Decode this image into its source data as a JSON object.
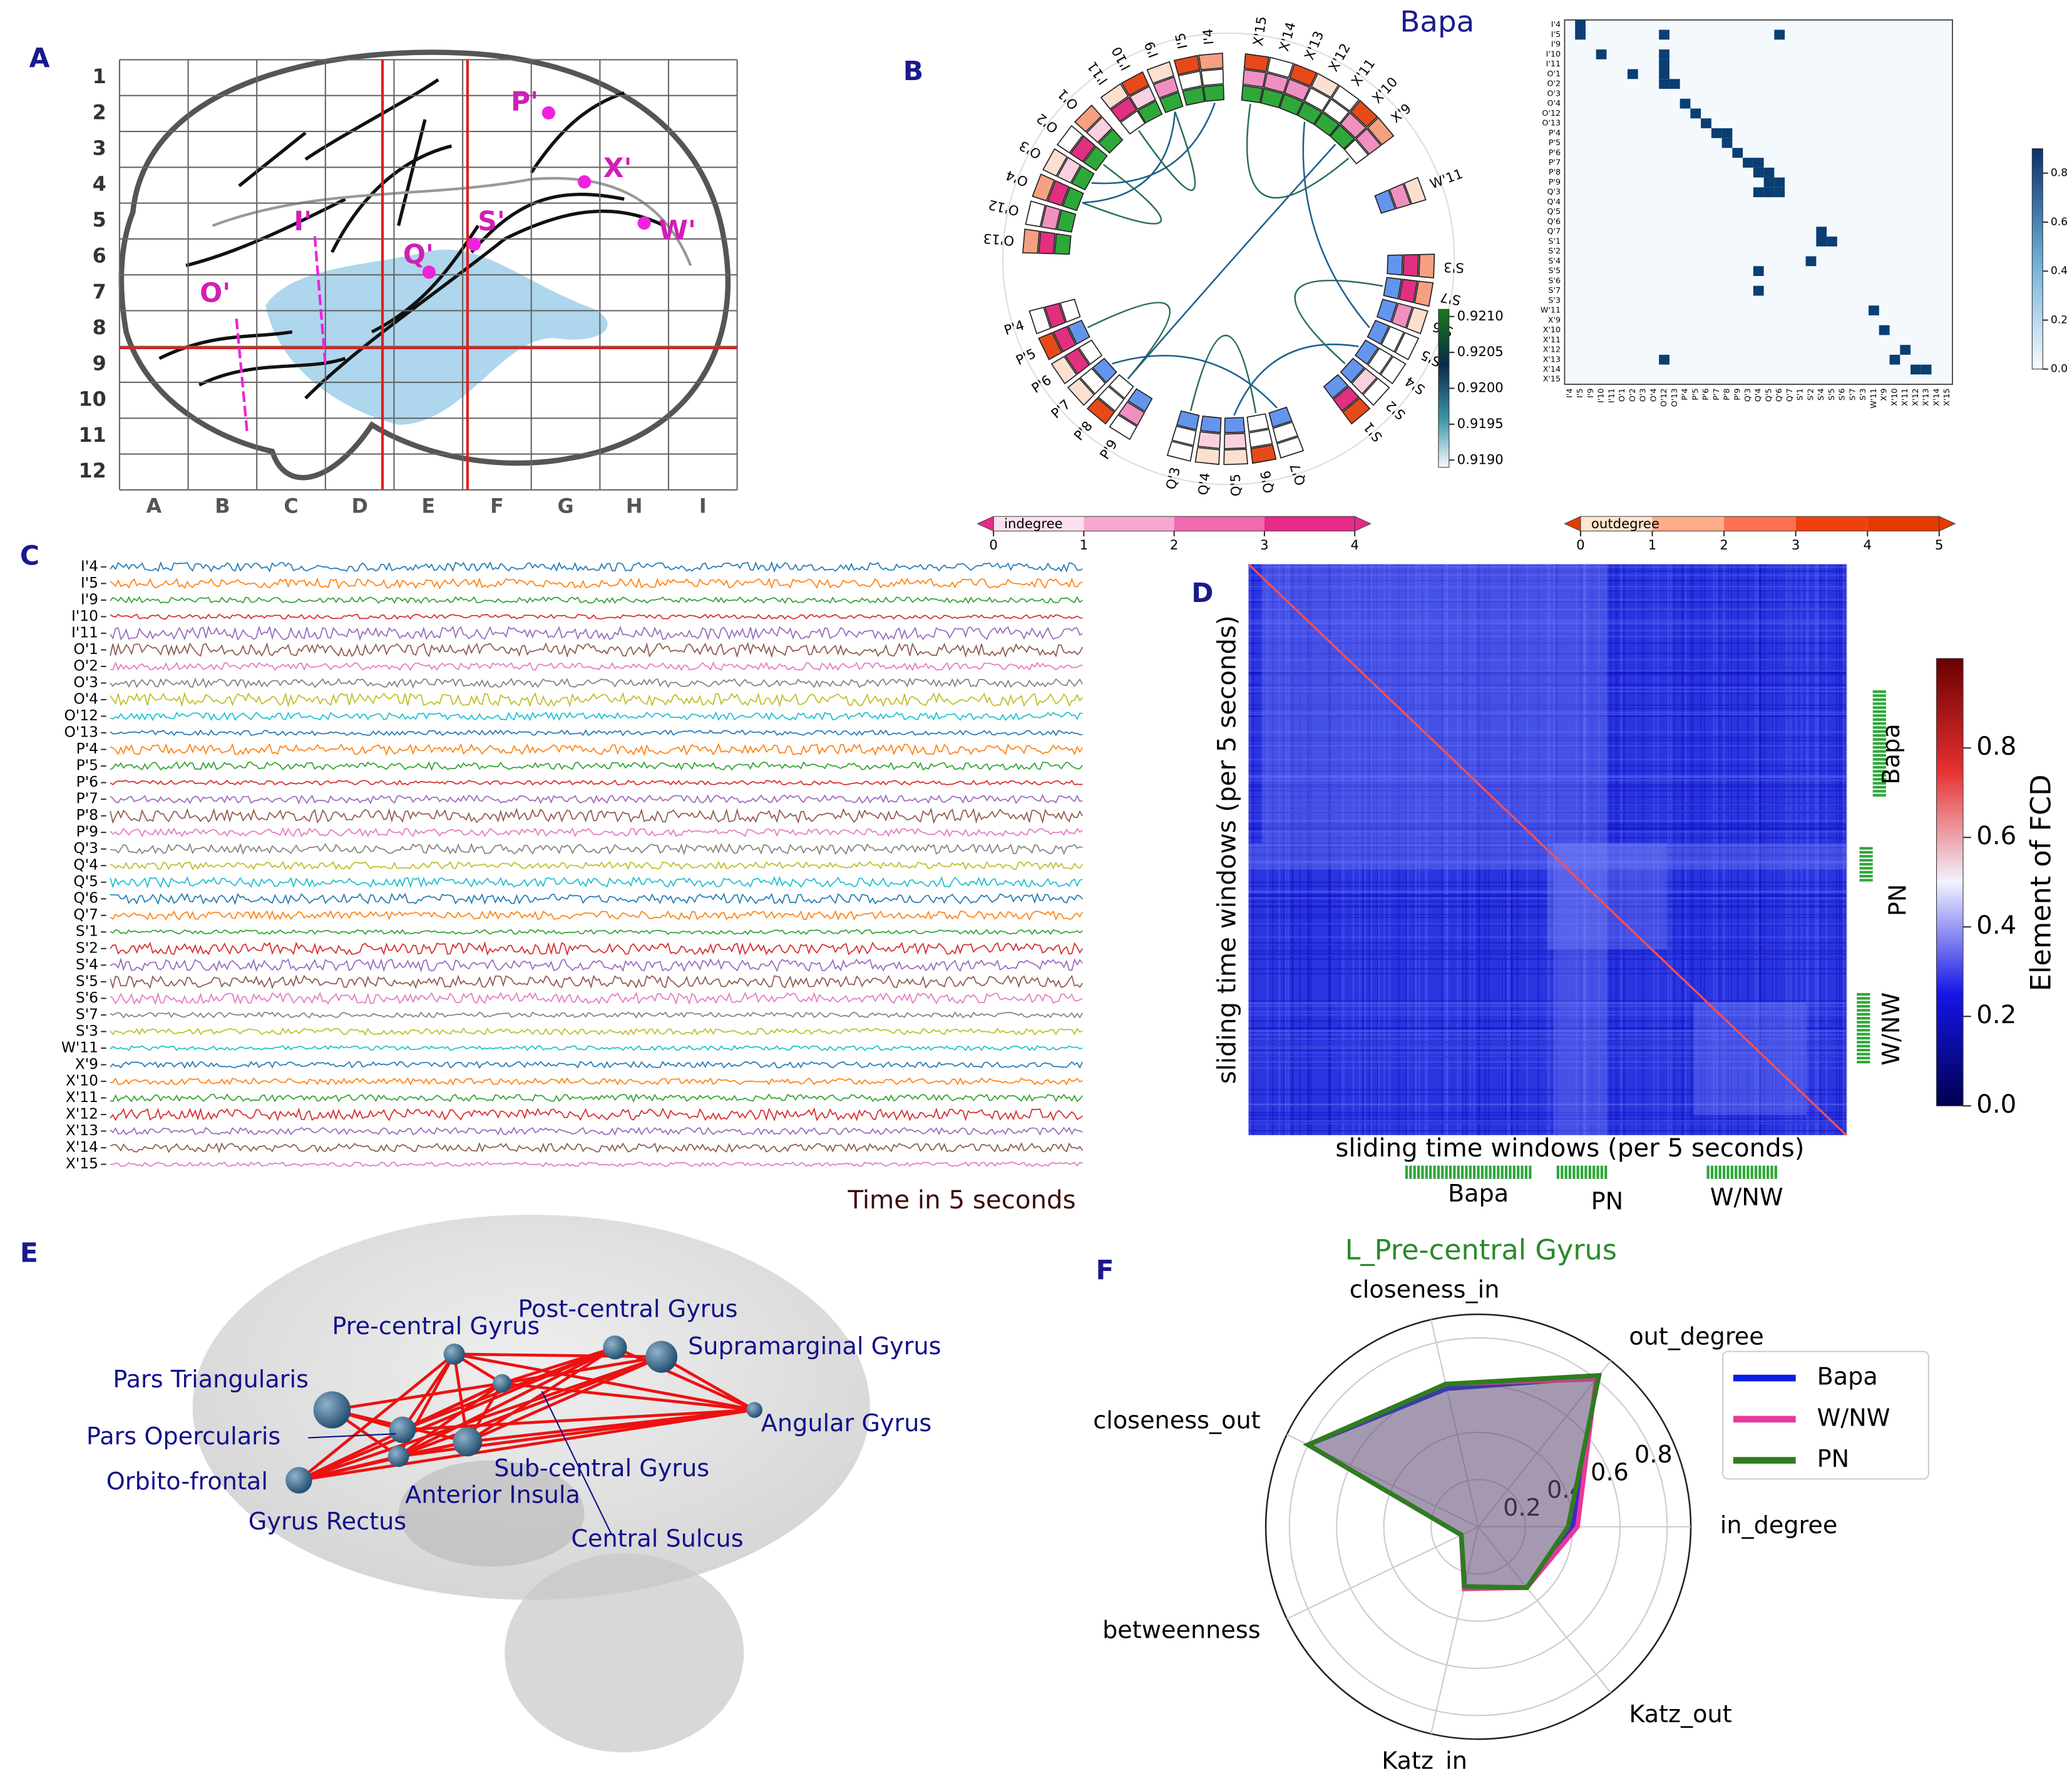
{
  "panel_labels": [
    "A",
    "B",
    "C",
    "D",
    "E",
    "F"
  ],
  "panel_a": {
    "rows": [
      "1",
      "2",
      "3",
      "4",
      "5",
      "6",
      "7",
      "8",
      "9",
      "10",
      "11",
      "12"
    ],
    "cols": [
      "A",
      "B",
      "C",
      "D",
      "E",
      "F",
      "G",
      "H",
      "I"
    ],
    "electrodes": [
      "O'",
      "I'",
      "Q'",
      "S'",
      "P'",
      "X'",
      "W'"
    ]
  },
  "panel_b": {
    "title": "Bapa",
    "circle_labels": [
      "I'11",
      "I'10",
      "I'9",
      "I'5",
      "I'4",
      "X'15",
      "X'14",
      "X'13",
      "X'12",
      "X'11",
      "X'10",
      "X'9",
      "W'11",
      "S'3",
      "S'7",
      "S'6",
      "S'5",
      "S'4",
      "S'2",
      "S'1",
      "Q'7",
      "Q'6",
      "Q'5",
      "Q'4",
      "Q'3",
      "P'9",
      "P'8",
      "P'7",
      "P'6",
      "P'5",
      "P'4",
      "O'13",
      "O'12",
      "O'4",
      "O'3",
      "O'2",
      "O'1"
    ],
    "edge_colorbar": {
      "lim": [
        0.9189,
        0.9211
      ],
      "ticks": [
        {
          "value": 0.919,
          "label": "0.9190"
        },
        0.9195,
        {
          "value": 0.92,
          "label": "0.9200"
        },
        0.9205,
        {
          "value": 0.921,
          "label": "0.9210"
        }
      ]
    },
    "indegree": {
      "label": "indegree",
      "lim": [
        0,
        4
      ],
      "ticks": [
        0,
        1,
        2,
        3,
        4
      ]
    },
    "outdegree": {
      "label": "outdegree",
      "lim": [
        0,
        5
      ],
      "ticks": [
        0,
        1,
        2,
        3,
        4,
        5
      ]
    },
    "matrix": {
      "colorbar_lim": [
        0,
        0.9
      ],
      "colorbar_ticks": [
        {
          "value": 0,
          "label": "0.0"
        },
        0.2,
        0.4,
        0.6,
        0.8
      ],
      "links": [
        [
          0,
          1
        ],
        [
          1,
          1
        ],
        [
          1,
          9
        ],
        [
          1,
          20
        ],
        [
          3,
          3
        ],
        [
          3,
          9
        ],
        [
          4,
          9
        ],
        [
          5,
          6
        ],
        [
          5,
          9
        ],
        [
          6,
          9
        ],
        [
          6,
          10
        ],
        [
          8,
          11
        ],
        [
          9,
          12
        ],
        [
          10,
          13
        ],
        [
          11,
          14
        ],
        [
          11,
          15
        ],
        [
          12,
          15
        ],
        [
          13,
          16
        ],
        [
          14,
          17
        ],
        [
          14,
          18
        ],
        [
          15,
          18
        ],
        [
          15,
          19
        ],
        [
          16,
          19
        ],
        [
          16,
          20
        ],
        [
          17,
          18
        ],
        [
          17,
          19
        ],
        [
          17,
          20
        ],
        [
          21,
          24
        ],
        [
          22,
          24
        ],
        [
          22,
          25
        ],
        [
          24,
          23
        ],
        [
          25,
          18
        ],
        [
          27,
          18
        ],
        [
          29,
          29
        ],
        [
          31,
          30
        ],
        [
          34,
          31
        ],
        [
          34,
          9
        ],
        [
          33,
          32
        ],
        [
          35,
          33
        ],
        [
          35,
          34
        ]
      ]
    }
  },
  "panel_c": {
    "channels": [
      "I'4",
      "I'5",
      "I'9",
      "I'10",
      "I'11",
      "O'1",
      "O'2",
      "O'3",
      "O'4",
      "O'12",
      "O'13",
      "P'4",
      "P'5",
      "P'6",
      "P'7",
      "P'8",
      "P'9",
      "Q'3",
      "Q'4",
      "Q'5",
      "Q'6",
      "Q'7",
      "S'1",
      "S'2",
      "S'4",
      "S'5",
      "S'6",
      "S'7",
      "S'3",
      "W'11",
      "X'9",
      "X'10",
      "X'11",
      "X'12",
      "X'13",
      "X'14",
      "X'15"
    ],
    "xlabel": "Time in 5 seconds"
  },
  "panel_d": {
    "ylabel": "sliding time windows (per 5 seconds)",
    "xlabel": "sliding time windows (per 5 seconds)",
    "groups": [
      "Bapa",
      "PN",
      "W/NW"
    ],
    "colorbar": {
      "label": "Element of FCD",
      "lim": [
        0,
        1
      ],
      "ticks": [
        {
          "value": 0,
          "label": "0.0"
        },
        0.2,
        0.4,
        0.6,
        0.8
      ]
    }
  },
  "panel_e": {
    "labels": [
      "Pre-central Gyrus",
      "Post-central Gyrus",
      "Supramarginal Gyrus",
      "Pars Triangularis",
      "Angular Gyrus",
      "Pars Opercularis",
      "Sub-central Gyrus",
      "Orbito-frontal",
      "Anterior Insula",
      "Gyrus Rectus",
      "Central Sulcus"
    ]
  },
  "chart_data": {
    "type": "radar",
    "title": "L_Pre-central Gyrus",
    "axes": [
      "in_degree",
      "out_degree",
      "closeness_in",
      "closeness_out",
      "betweenness",
      "Katz_in",
      "Katz_out"
    ],
    "rlim": [
      0,
      0.9
    ],
    "rticks": [
      0.2,
      0.4,
      0.6,
      0.8
    ],
    "legend": "upper right",
    "series": [
      {
        "name": "Bapa",
        "color": "#0a1ee6",
        "values": [
          0.4,
          0.81,
          0.6,
          0.8,
          0.08,
          0.26,
          0.33
        ]
      },
      {
        "name": "W/NW",
        "color": "#e6399b",
        "values": [
          0.42,
          0.8,
          0.62,
          0.8,
          0.08,
          0.27,
          0.33
        ]
      },
      {
        "name": "PN",
        "color": "#2e7d20",
        "values": [
          0.38,
          0.82,
          0.62,
          0.8,
          0.08,
          0.26,
          0.33
        ]
      }
    ]
  }
}
